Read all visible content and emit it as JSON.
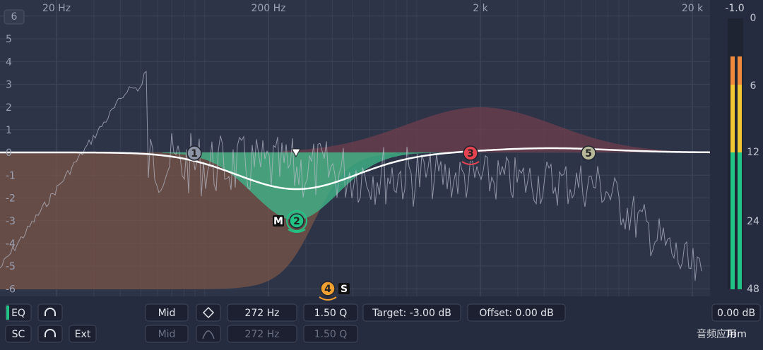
{
  "freq_axis": [
    "20 Hz",
    "200 Hz",
    "2 k",
    "20 k"
  ],
  "gain_axis": [
    "6",
    "5",
    "4",
    "3",
    "2",
    "1",
    "0",
    "-1",
    "-2",
    "-3",
    "-4",
    "-5",
    "-6"
  ],
  "meter": {
    "peak": "-1.0",
    "scale": [
      "0",
      "6",
      "12",
      "24",
      "48"
    ]
  },
  "bands": [
    {
      "label": "1"
    },
    {
      "label": "2"
    },
    {
      "label": "3"
    },
    {
      "label": "4"
    },
    {
      "label": "5"
    }
  ],
  "tags": {
    "mid": "M",
    "side": "S"
  },
  "controls": {
    "row1": {
      "eq": "EQ",
      "channel": "Mid",
      "freq": "272 Hz",
      "q": "1.50 Q",
      "target": "Target: -3.00 dB",
      "offset": "Offset: 0.00 dB",
      "gain": "0.00 dB"
    },
    "row2": {
      "sc": "SC",
      "ext": "Ext",
      "channel": "Mid",
      "freq": "272 Hz",
      "q": "1.50 Q",
      "trim": "Trim"
    }
  },
  "watermark": "音频应用"
}
